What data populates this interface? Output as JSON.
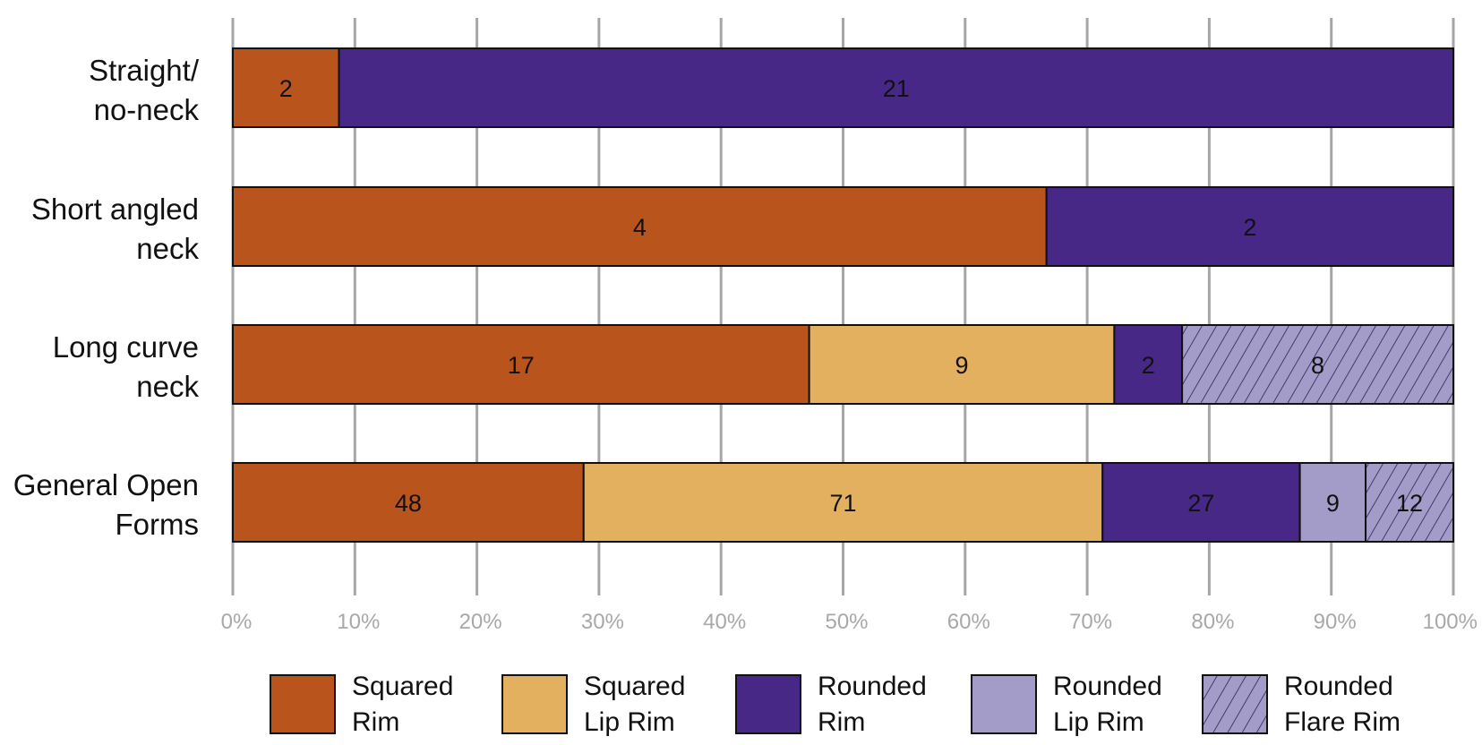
{
  "chart_data": {
    "type": "bar",
    "orientation": "horizontal",
    "stacked": "percent",
    "categories": [
      [
        "Straight/",
        "no-neck"
      ],
      [
        "Short angled",
        "neck"
      ],
      [
        "Long curve",
        "neck"
      ],
      [
        "General Open",
        "Forms"
      ]
    ],
    "series": [
      {
        "name": "Squared Rim",
        "legend_lines": [
          "Squared",
          "Rim"
        ],
        "color": "#b8541c",
        "hatch": false,
        "values": [
          2,
          4,
          17,
          48
        ]
      },
      {
        "name": "Squared Lip Rim",
        "legend_lines": [
          "Squared",
          "Lip Rim"
        ],
        "color": "#e2b05f",
        "hatch": false,
        "values": [
          0,
          0,
          9,
          71
        ]
      },
      {
        "name": "Rounded Rim",
        "legend_lines": [
          "Rounded",
          "Rim"
        ],
        "color": "#472886",
        "hatch": false,
        "values": [
          21,
          2,
          2,
          27
        ]
      },
      {
        "name": "Rounded Lip Rim",
        "legend_lines": [
          "Rounded",
          "Lip Rim"
        ],
        "color": "#a49cc8",
        "hatch": false,
        "values": [
          0,
          0,
          0,
          9
        ]
      },
      {
        "name": "Rounded Flare Rim",
        "legend_lines": [
          "Rounded",
          "Flare Rim"
        ],
        "color": "#a49cc8",
        "hatch": true,
        "values": [
          0,
          0,
          8,
          12
        ]
      }
    ],
    "xlim": [
      0,
      100
    ],
    "xticks": [
      "0%",
      "10%",
      "20%",
      "30%",
      "40%",
      "50%",
      "60%",
      "70%",
      "80%",
      "90%",
      "100%"
    ],
    "grid": true,
    "legend_position": "bottom",
    "title": "",
    "xlabel": "",
    "ylabel": ""
  }
}
